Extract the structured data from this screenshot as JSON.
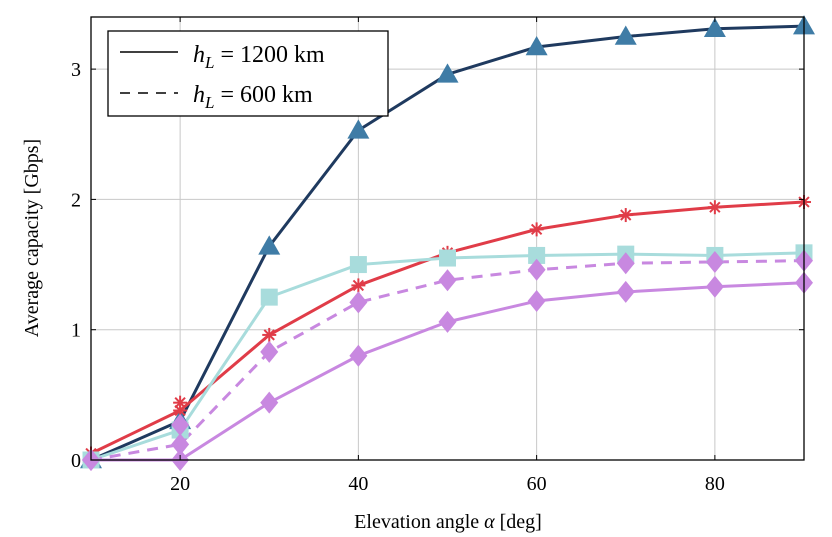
{
  "chart_data": {
    "type": "line",
    "xlabel_text": "Elevation angle",
    "xlabel_symbol": "α",
    "xlabel_unit": "[deg]",
    "ylabel": "Average capacity [Gbps]",
    "xlim": [
      10,
      90
    ],
    "ylim": [
      0,
      3.4
    ],
    "xticks": [
      20,
      40,
      60,
      80
    ],
    "xtick_labels": [
      "20",
      "40",
      "60",
      "80"
    ],
    "yticks": [
      0,
      1,
      2,
      3
    ],
    "ytick_labels": [
      "0",
      "1",
      "2",
      "3"
    ],
    "grid": true,
    "legend_position": "top-left",
    "legend": [
      {
        "var": "h",
        "sub": "L",
        "rest": " = 1200 km",
        "style": "solid"
      },
      {
        "var": "h",
        "sub": "L",
        "rest": " = 600 km",
        "style": "dashed"
      }
    ],
    "x": [
      10,
      20,
      30,
      40,
      50,
      60,
      70,
      80,
      90
    ],
    "series": [
      {
        "color": "#1f3a5f",
        "marker": "triangle",
        "marker_color": "#3f7ca6",
        "dash": "solid",
        "values": [
          0,
          0.3,
          1.64,
          2.53,
          2.96,
          3.17,
          3.25,
          3.31,
          3.33
        ]
      },
      {
        "color": "#e03c48",
        "marker": "asterisk",
        "marker_color": "#e03c48",
        "dash": "solid",
        "values": [
          0.05,
          0.38,
          0.96,
          1.34,
          1.59,
          1.77,
          1.88,
          1.94,
          1.98
        ]
      },
      {
        "color": "#a8dcdc",
        "marker": "square",
        "marker_color": "#a8dcdc",
        "dash": "solid",
        "values": [
          0,
          0.23,
          1.25,
          1.5,
          1.55,
          1.57,
          1.58,
          1.57,
          1.59
        ]
      },
      {
        "color": "#c888e0",
        "marker": "diamond",
        "marker_color": "#c888e0",
        "dash": "dashed",
        "values": [
          0,
          0.12,
          0.83,
          1.21,
          1.38,
          1.46,
          1.51,
          1.52,
          1.53
        ]
      },
      {
        "color": "#c888e0",
        "marker": "diamond",
        "marker_color": "#c888e0",
        "dash": "solid",
        "values": [
          0,
          0,
          0.44,
          0.8,
          1.06,
          1.22,
          1.29,
          1.33,
          1.36
        ]
      }
    ],
    "marker_overlay": [
      {
        "marker": "asterisk",
        "color": "#e03c48",
        "x": 20,
        "y": 0.44
      },
      {
        "marker": "diamond",
        "color": "#c888e0",
        "x": 20,
        "y": 0.27
      }
    ]
  }
}
